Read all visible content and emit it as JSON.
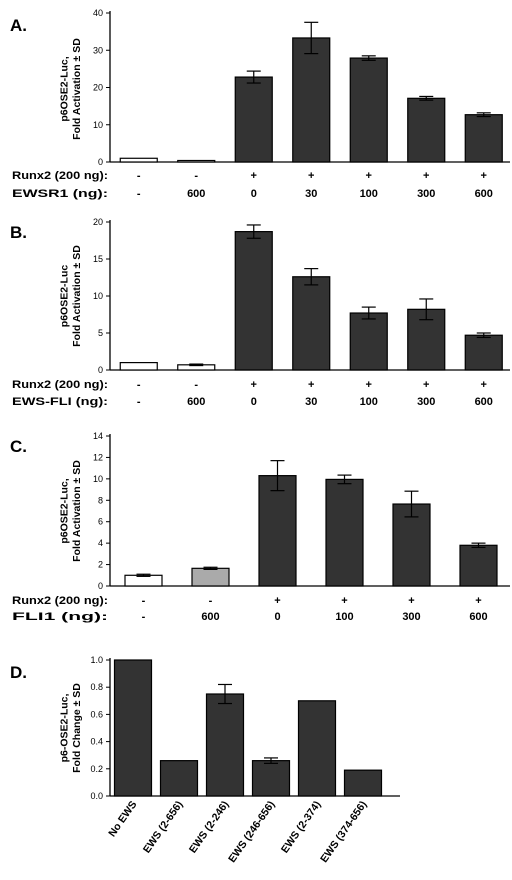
{
  "chart_data": [
    {
      "panel": "A.",
      "type": "bar",
      "ylabel": [
        "p6OSE2-Luc,",
        "Fold Activation ± SD"
      ],
      "ylim": [
        0,
        40
      ],
      "yticks": [
        0,
        10,
        20,
        30,
        40
      ],
      "condition_rows": [
        {
          "label": "Runx2 (200 ng):",
          "values": [
            "-",
            "-",
            "+",
            "+",
            "+",
            "+",
            "+"
          ]
        },
        {
          "label": "EWSR1 (ng):",
          "values": [
            "-",
            "600",
            "0",
            "30",
            "100",
            "300",
            "600"
          ]
        }
      ],
      "values": [
        1.0,
        0.3,
        22.8,
        33.3,
        27.9,
        17.1,
        12.7
      ],
      "errors": [
        0,
        0,
        1.6,
        4.2,
        0.6,
        0.5,
        0.5
      ],
      "fills": [
        "#ffffff",
        "#ffffff",
        "#333333",
        "#333333",
        "#333333",
        "#333333",
        "#333333"
      ]
    },
    {
      "panel": "B.",
      "type": "bar",
      "ylabel": [
        "p6OSE2-Luc",
        "Fold Activation ± SD"
      ],
      "ylim": [
        0,
        20
      ],
      "yticks": [
        0,
        5,
        10,
        15,
        20
      ],
      "condition_rows": [
        {
          "label": "Runx2 (200 ng):",
          "values": [
            "-",
            "-",
            "+",
            "+",
            "+",
            "+",
            "+"
          ]
        },
        {
          "label": "EWS-FLI (ng):",
          "values": [
            "-",
            "600",
            "0",
            "30",
            "100",
            "300",
            "600"
          ]
        }
      ],
      "values": [
        1.0,
        0.7,
        18.7,
        12.6,
        7.7,
        8.2,
        4.7
      ],
      "errors": [
        0,
        0.1,
        0.9,
        1.1,
        0.8,
        1.4,
        0.3
      ],
      "fills": [
        "#ffffff",
        "#ffffff",
        "#333333",
        "#333333",
        "#333333",
        "#333333",
        "#333333"
      ]
    },
    {
      "panel": "C.",
      "type": "bar",
      "ylabel": [
        "p6OSE2-Luc,",
        "Fold Activation ± SD"
      ],
      "ylim": [
        0,
        14
      ],
      "yticks": [
        0,
        2,
        4,
        6,
        8,
        10,
        12,
        14
      ],
      "condition_rows": [
        {
          "label": "Runx2 (200 ng):",
          "values": [
            "-",
            "-",
            "+",
            "+",
            "+",
            "+"
          ]
        },
        {
          "label": "FLI1 (ng):",
          "values": [
            "-",
            "600",
            "0",
            "100",
            "300",
            "600"
          ]
        }
      ],
      "values": [
        1.0,
        1.65,
        10.3,
        9.95,
        7.65,
        3.8
      ],
      "errors": [
        0.1,
        0.1,
        1.4,
        0.4,
        1.2,
        0.2
      ],
      "fills": [
        "#ffffff",
        "#aaaaaa",
        "#333333",
        "#333333",
        "#333333",
        "#333333"
      ]
    },
    {
      "panel": "D.",
      "type": "bar",
      "ylabel": [
        "p6-OSE2-Luc,",
        "Fold Change ± SD"
      ],
      "ylim": [
        0,
        1.0
      ],
      "yticks": [
        "0.0",
        "0.2",
        "0.4",
        "0.6",
        "0.8",
        "1.0"
      ],
      "categories": [
        "No EWS",
        "EWS (2-656)",
        "EWS (2-246)",
        "EWS (246-656)",
        "EWS (2-374)",
        "EWS (374-656)"
      ],
      "values": [
        1.0,
        0.26,
        0.75,
        0.26,
        0.7,
        0.19
      ],
      "errors": [
        0,
        0,
        0.07,
        0.02,
        0,
        0
      ],
      "fills": [
        "#333333",
        "#333333",
        "#333333",
        "#333333",
        "#333333",
        "#333333"
      ]
    }
  ]
}
